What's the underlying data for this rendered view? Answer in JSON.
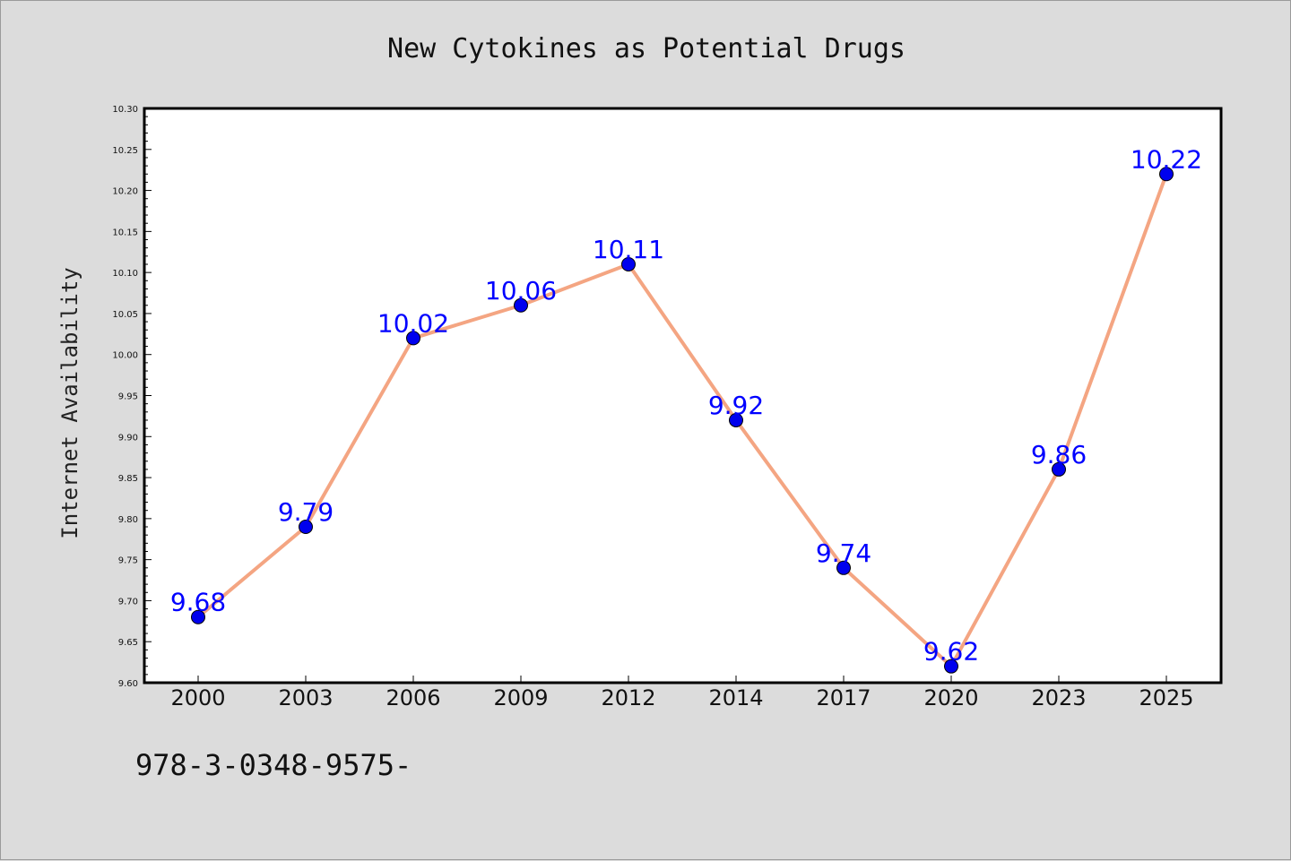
{
  "chart_data": {
    "type": "line",
    "title": "New Cytokines as Potential Drugs",
    "xlabel": "",
    "ylabel": "Internet Availability",
    "categories": [
      "2000",
      "2003",
      "2006",
      "2009",
      "2012",
      "2014",
      "2017",
      "2020",
      "2023",
      "2025"
    ],
    "values": [
      9.68,
      9.79,
      10.02,
      10.06,
      10.11,
      9.92,
      9.74,
      9.62,
      9.86,
      10.22
    ],
    "data_labels": [
      "9.68",
      "9.79",
      "10.02",
      "10.06",
      "10.11",
      "9.92",
      "9.74",
      "9.62",
      "9.86",
      "10.22"
    ],
    "ylim": [
      9.6,
      10.3
    ],
    "yticks": [
      "9.60",
      "9.65",
      "9.70",
      "9.75",
      "9.80",
      "9.85",
      "9.90",
      "9.95",
      "10.00",
      "10.05",
      "10.10",
      "10.15",
      "10.20",
      "10.25",
      "10.30"
    ],
    "grid": false,
    "legend": "none",
    "colors": {
      "line": "#f4a582",
      "marker": "#0000ee",
      "label": "#0000ff",
      "background": "#dcdcdc",
      "plot_background": "#ffffff"
    }
  },
  "footnote": "978-3-0348-9575-"
}
